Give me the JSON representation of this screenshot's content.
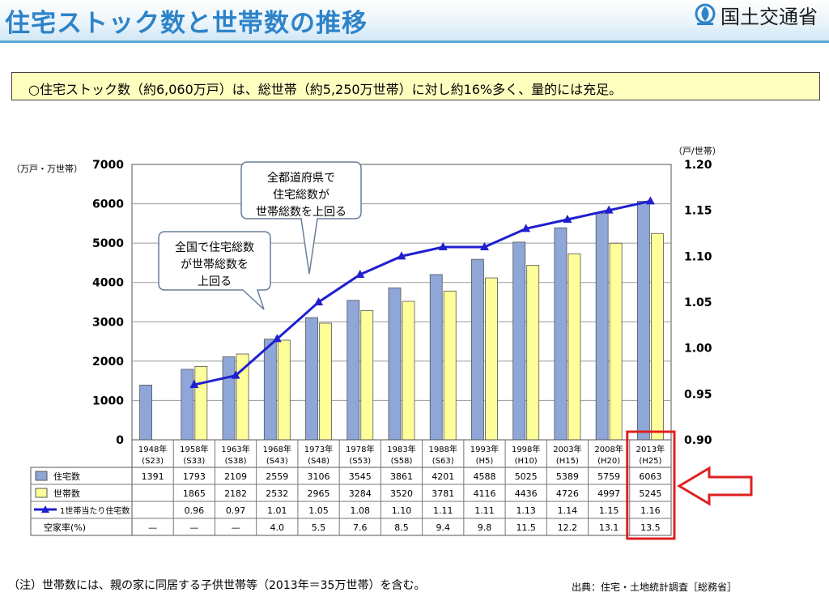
{
  "header": {
    "title": "住宅ストック数と世帯数の推移",
    "logo_text": "国土交通省",
    "logo_icon": "mlit-logo-icon"
  },
  "note": "○住宅ストック数（約6,060万戸）は、総世帯（約5,250万世帯）に対し約16%多く、量的には充足。",
  "footnote": "（注）世帯数には、親の家に同居する子供世帯等（2013年＝35万世帯）を含む。",
  "source": "出典：住宅・土地統計調査［総務省］",
  "chart_data": {
    "type": "bar",
    "yunit_left": "（万戸・万世帯）",
    "yunit_right": "（戸/世帯）",
    "ylim_left": [
      0,
      7000
    ],
    "ylim_right": [
      0.9,
      1.2
    ],
    "yticks_left": [
      "0",
      "1000",
      "2000",
      "3000",
      "4000",
      "5000",
      "6000",
      "7000"
    ],
    "yticks_right": [
      "0.90",
      "0.95",
      "1.00",
      "1.05",
      "1.10",
      "1.15",
      "1.20"
    ],
    "categories": [
      {
        "year": "1948年",
        "era": "(S23)"
      },
      {
        "year": "1958年",
        "era": "(S33)"
      },
      {
        "year": "1963年",
        "era": "(S38)"
      },
      {
        "year": "1968年",
        "era": "(S43)"
      },
      {
        "year": "1973年",
        "era": "(S48)"
      },
      {
        "year": "1978年",
        "era": "(S53)"
      },
      {
        "year": "1983年",
        "era": "(S58)"
      },
      {
        "year": "1988年",
        "era": "(S63)"
      },
      {
        "year": "1993年",
        "era": "(H5)"
      },
      {
        "year": "1998年",
        "era": "(H10)"
      },
      {
        "year": "2003年",
        "era": "(H15)"
      },
      {
        "year": "2008年",
        "era": "(H20)"
      },
      {
        "year": "2013年",
        "era": "(H25)"
      }
    ],
    "series": [
      {
        "name": "住宅数",
        "kind": "bar",
        "color": "#8ea7d8",
        "values": [
          1391,
          1793,
          2109,
          2559,
          3106,
          3545,
          3861,
          4201,
          4588,
          5025,
          5389,
          5759,
          6063
        ]
      },
      {
        "name": "世帯数",
        "kind": "bar",
        "color": "#ffff99",
        "values": [
          null,
          1865,
          2182,
          2532,
          2965,
          3284,
          3520,
          3781,
          4116,
          4436,
          4726,
          4997,
          5245
        ]
      },
      {
        "name": "1世帯当たり住宅数",
        "kind": "line",
        "color": "#1f1fd0",
        "axis": "right",
        "values": [
          null,
          0.96,
          0.97,
          1.01,
          1.05,
          1.08,
          1.1,
          1.11,
          1.11,
          1.13,
          1.14,
          1.15,
          1.16
        ]
      }
    ],
    "table_rows": [
      {
        "label": "住宅数",
        "cells": [
          "1391",
          "1793",
          "2109",
          "2559",
          "3106",
          "3545",
          "3861",
          "4201",
          "4588",
          "5025",
          "5389",
          "5759",
          "6063"
        ]
      },
      {
        "label": "世帯数",
        "cells": [
          "",
          "1865",
          "2182",
          "2532",
          "2965",
          "3284",
          "3520",
          "3781",
          "4116",
          "4436",
          "4726",
          "4997",
          "5245"
        ]
      },
      {
        "label": "1世帯当たり住宅数",
        "cells": [
          "",
          "0.96",
          "0.97",
          "1.01",
          "1.05",
          "1.08",
          "1.10",
          "1.11",
          "1.11",
          "1.13",
          "1.14",
          "1.15",
          "1.16"
        ]
      },
      {
        "label": "空家率(%)",
        "cells": [
          "—",
          "—",
          "—",
          "4.0",
          "5.5",
          "7.6",
          "8.5",
          "9.4",
          "9.8",
          "11.5",
          "12.2",
          "13.1",
          "13.5"
        ]
      }
    ],
    "callouts": [
      {
        "lines": [
          "全国で住宅総数",
          "が世帯総数を",
          "上回る"
        ]
      },
      {
        "lines": [
          "全都道府県で",
          "住宅総数が",
          "世帯総数を上回る"
        ]
      }
    ],
    "highlight_category": "2013年",
    "highlight_color": "#e02020"
  }
}
